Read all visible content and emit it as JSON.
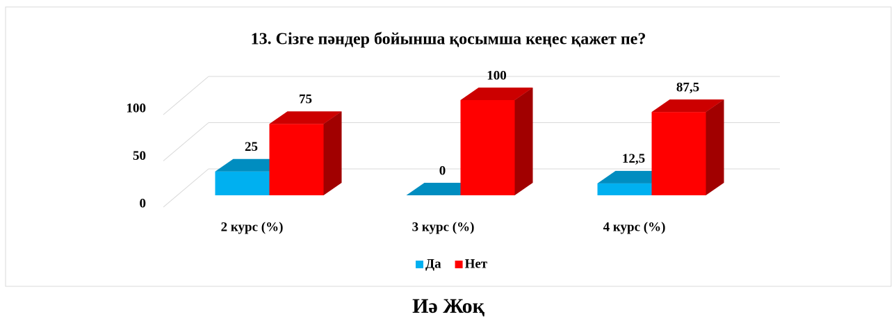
{
  "chart_data": {
    "type": "bar3d",
    "title": "13. Сізге пәндер бойынша қосымша кеңес қажет пе?",
    "categories": [
      "2 курс (%)",
      "3 курс (%)",
      "4 курс (%)"
    ],
    "series": [
      {
        "name": "Да",
        "color": "#00b0f0",
        "values": [
          25,
          0,
          12.5
        ],
        "value_labels": [
          "25",
          "0",
          "12,5"
        ]
      },
      {
        "name": "Нет",
        "color": "#ff0000",
        "values": [
          75,
          100,
          87.5
        ],
        "value_labels": [
          "75",
          "100",
          "87,5"
        ]
      }
    ],
    "ylim": [
      0,
      100
    ],
    "yticks": [
      0,
      50,
      100
    ],
    "grid": true,
    "legend": "bottom"
  },
  "caption": "Иә   Жоқ"
}
